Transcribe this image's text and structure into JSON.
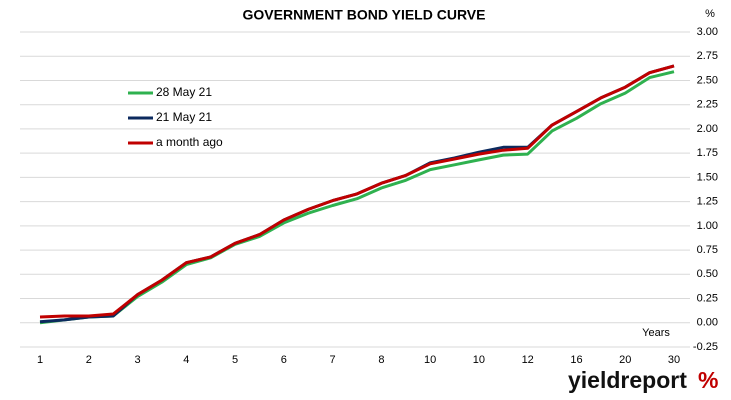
{
  "chart_data": {
    "type": "line",
    "title": "GOVERNMENT BOND YIELD CURVE",
    "y_unit": "%",
    "x_label": "Years",
    "categories": [
      "1",
      null,
      "2",
      null,
      "3",
      null,
      "4",
      null,
      "5",
      null,
      "6",
      null,
      "7",
      null,
      "8",
      null,
      "10",
      null,
      "10",
      null,
      "12",
      null,
      "16",
      null,
      "20",
      null,
      "30"
    ],
    "series": [
      {
        "name": "28 May 21",
        "color": "#2fb14f",
        "values": [
          0.0,
          0.03,
          0.06,
          0.07,
          0.27,
          0.42,
          0.6,
          0.67,
          0.81,
          0.89,
          1.03,
          1.13,
          1.21,
          1.28,
          1.39,
          1.47,
          1.58,
          1.63,
          1.68,
          1.73,
          1.74,
          1.98,
          2.11,
          2.26,
          2.37,
          2.53,
          2.59
        ]
      },
      {
        "name": "21 May 21",
        "color": "#0c2a5e",
        "values": [
          0.01,
          0.03,
          0.06,
          0.07,
          0.29,
          0.44,
          0.62,
          0.68,
          0.82,
          0.91,
          1.06,
          1.17,
          1.26,
          1.33,
          1.44,
          1.52,
          1.65,
          1.7,
          1.76,
          1.81,
          1.81,
          2.04,
          2.18,
          2.32,
          2.43,
          2.58,
          2.65
        ]
      },
      {
        "name": "a month ago",
        "color": "#c00000",
        "values": [
          0.06,
          0.07,
          0.07,
          0.09,
          0.29,
          0.44,
          0.62,
          0.68,
          0.82,
          0.91,
          1.06,
          1.17,
          1.26,
          1.33,
          1.44,
          1.52,
          1.64,
          1.69,
          1.74,
          1.78,
          1.8,
          2.04,
          2.18,
          2.32,
          2.43,
          2.58,
          2.65
        ]
      }
    ],
    "ylim": [
      -0.25,
      3.0
    ],
    "yticks": [
      {
        "value": -0.25,
        "label": "-0.25"
      },
      {
        "value": 0,
        "label": "0.00"
      },
      {
        "value": 0.25,
        "label": "0.25"
      },
      {
        "value": 0.5,
        "label": "0.50"
      },
      {
        "value": 0.75,
        "label": "0.75"
      },
      {
        "value": 1,
        "label": "1.00"
      },
      {
        "value": 1.25,
        "label": "1.25"
      },
      {
        "value": 1.5,
        "label": "1.50"
      },
      {
        "value": 1.75,
        "label": "1.75"
      },
      {
        "value": 2,
        "label": "2.00"
      },
      {
        "value": 2.25,
        "label": "2.25"
      },
      {
        "value": 2.5,
        "label": "2.50"
      },
      {
        "value": 2.75,
        "label": "2.75"
      },
      {
        "value": 3,
        "label": "3.00"
      }
    ],
    "grid": true,
    "legend": "upper left"
  },
  "logo": {
    "text": "yieldreport",
    "symbol": "%"
  }
}
